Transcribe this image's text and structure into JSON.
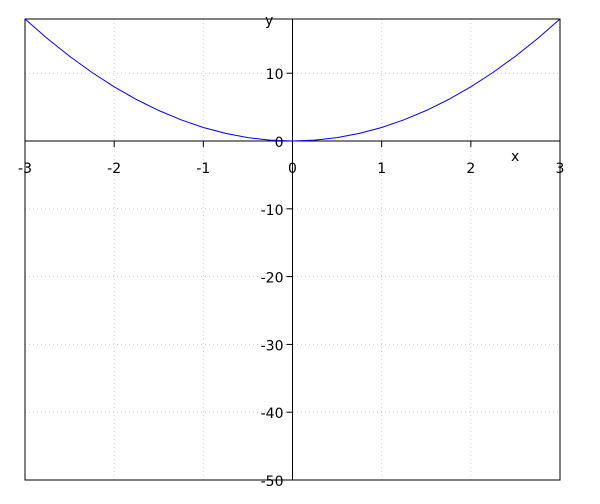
{
  "chart_data": {
    "type": "line",
    "title": "",
    "xlabel": "x",
    "ylabel": "y",
    "xlim": [
      -3,
      3
    ],
    "ylim": [
      -50,
      18
    ],
    "grid": true,
    "xticks": [
      -3,
      -2,
      -1,
      0,
      1,
      2,
      3
    ],
    "xtick_labels": [
      "-3",
      "-2",
      "-1",
      "0",
      "1",
      "2",
      "3"
    ],
    "yticks": [
      -50,
      -40,
      -30,
      -20,
      -10,
      0,
      10
    ],
    "ytick_labels": [
      "-50",
      "-40",
      "-30",
      "-20",
      "-10",
      "0",
      "10"
    ],
    "series": [
      {
        "color": "#0000ff",
        "x": [
          -3,
          -2.75,
          -2.5,
          -2.25,
          -2,
          -1.75,
          -1.5,
          -1.25,
          -1,
          -0.75,
          -0.5,
          -0.25,
          0,
          0.25,
          0.5,
          0.75,
          1,
          1.25,
          1.5,
          1.75,
          2,
          2.25,
          2.5,
          2.75,
          3
        ],
        "y": [
          18,
          15.125,
          12.5,
          10.125,
          8,
          6.125,
          4.5,
          3.125,
          2,
          1.125,
          0.5,
          0.125,
          0,
          0.125,
          0.5,
          1.125,
          2,
          3.125,
          4.5,
          6.125,
          8,
          10.125,
          12.5,
          15.125,
          18
        ]
      }
    ]
  }
}
